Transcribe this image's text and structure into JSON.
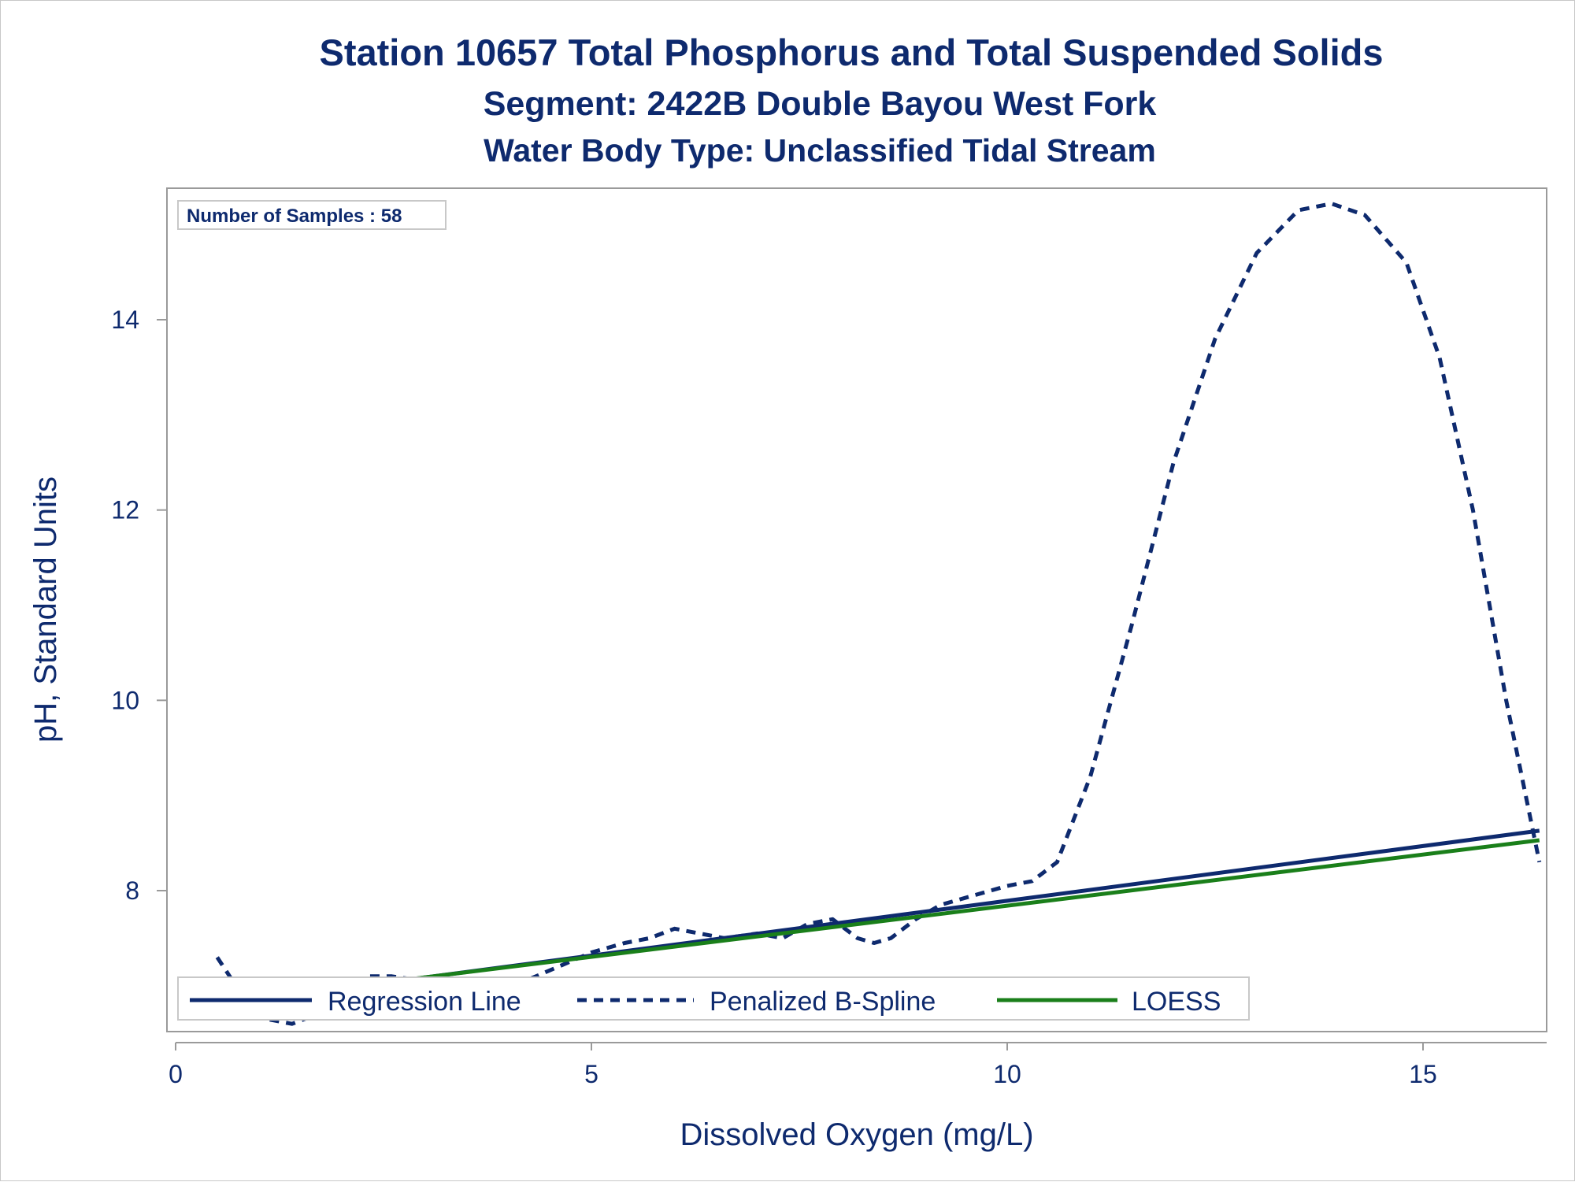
{
  "chart_data": {
    "type": "line",
    "title": "Station 10657  Total Phosphorus and Total Suspended Solids",
    "subtitle": "Segment: 2422B  Double Bayou West Fork",
    "subtitle2": "Water Body Type: Unclassified Tidal Stream",
    "xlabel": "Dissolved Oxygen (mg/L)",
    "ylabel": "pH, Standard Units",
    "xlim": [
      0,
      16.5
    ],
    "ylim": [
      6.6,
      15.5
    ],
    "x_ticks": [
      0,
      5,
      10,
      15
    ],
    "y_ticks": [
      8,
      10,
      12,
      14
    ],
    "grid": false,
    "inset_label": "Number of Samples : 58",
    "legend_position": "bottom-inside",
    "series": [
      {
        "name": "Regression Line",
        "style": "solid",
        "color": "#0e2a6e",
        "x": [
          0.5,
          16.4
        ],
        "y": [
          6.8,
          8.63
        ]
      },
      {
        "name": "Penalized B-Spline",
        "style": "dashed",
        "color": "#0e2a6e",
        "x": [
          0.5,
          0.8,
          1.1,
          1.4,
          1.7,
          2.0,
          2.3,
          2.6,
          3.0,
          3.4,
          3.8,
          4.2,
          4.6,
          5.0,
          5.4,
          5.7,
          6.0,
          6.3,
          6.6,
          7.0,
          7.3,
          7.6,
          7.9,
          8.2,
          8.4,
          8.6,
          8.9,
          9.2,
          9.6,
          10.0,
          10.3,
          10.6,
          11.0,
          11.5,
          12.0,
          12.5,
          13.0,
          13.5,
          13.9,
          14.3,
          14.8,
          15.2,
          15.6,
          16.0,
          16.4
        ],
        "y": [
          7.3,
          6.9,
          6.65,
          6.6,
          6.7,
          6.95,
          7.1,
          7.1,
          7.05,
          7.0,
          6.9,
          7.05,
          7.2,
          7.35,
          7.45,
          7.5,
          7.6,
          7.55,
          7.5,
          7.55,
          7.5,
          7.65,
          7.7,
          7.5,
          7.45,
          7.5,
          7.7,
          7.85,
          7.95,
          8.05,
          8.1,
          8.3,
          9.2,
          10.8,
          12.5,
          13.8,
          14.7,
          15.15,
          15.22,
          15.1,
          14.6,
          13.6,
          12.0,
          10.0,
          8.3
        ]
      },
      {
        "name": "LOESS",
        "style": "solid",
        "color": "#1a7f1a",
        "x": [
          0.5,
          16.4
        ],
        "y": [
          6.82,
          8.53
        ]
      }
    ]
  }
}
